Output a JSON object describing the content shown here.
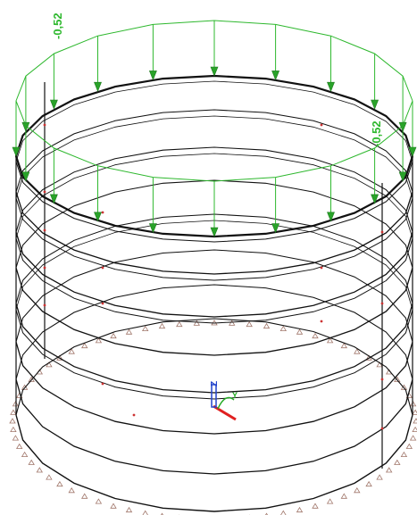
{
  "load_labels": {
    "left": "-0,52",
    "right": "-0,52"
  },
  "axis_labels": {
    "z": "Z",
    "y": "Y",
    "x": "X"
  },
  "colors": {
    "structure": "#111111",
    "load": "#2eb82e",
    "load_arrow_fill": "#29a329",
    "support": "#a0766a",
    "node": "#cc3333",
    "axis_x": "#e02020",
    "axis_y": "#22aa22",
    "axis_z": "#2244cc"
  },
  "icons": {
    "support": "pinned-support-icon",
    "axis_triad": "coordinate-axes-icon"
  }
}
